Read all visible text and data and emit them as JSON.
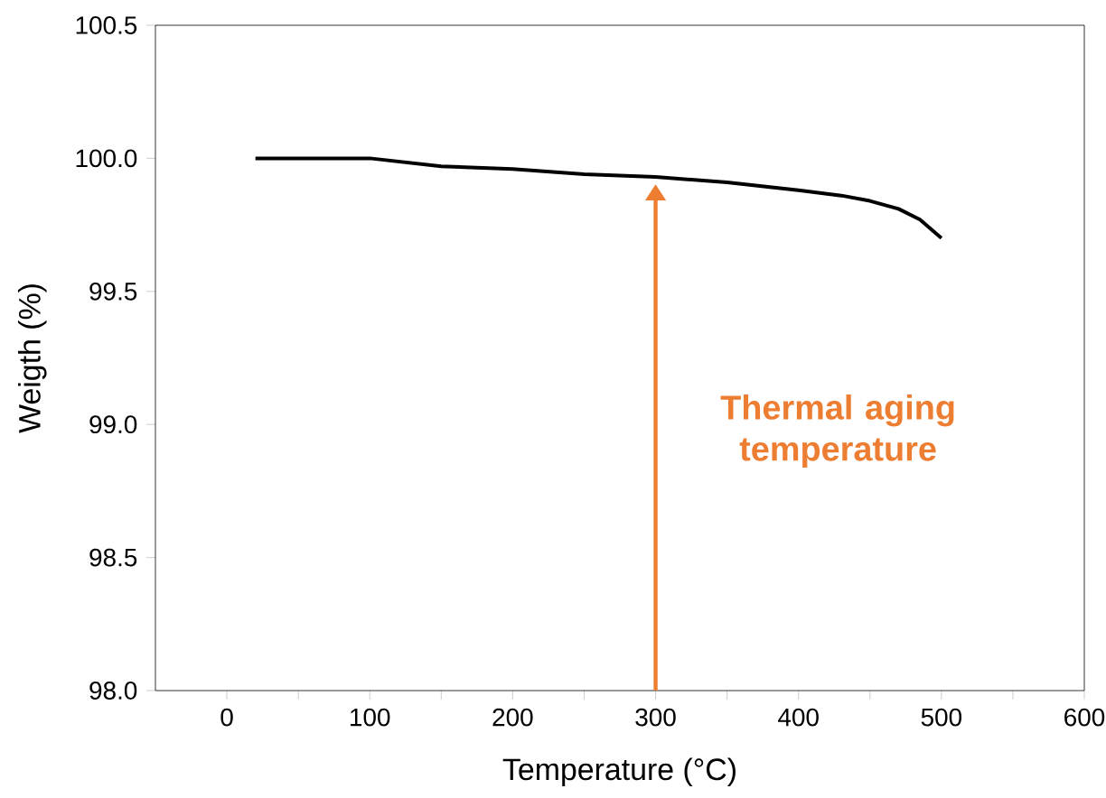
{
  "chart_data": {
    "type": "line",
    "xlabel": "Temperature (°C)",
    "ylabel": "Weigth (%)",
    "x": [
      20,
      70,
      100,
      150,
      200,
      250,
      300,
      350,
      400,
      430,
      450,
      470,
      485,
      500
    ],
    "series": [
      {
        "color": "#000000",
        "values": [
          100.0,
          100.0,
          100.0,
          99.97,
          99.96,
          99.94,
          99.93,
          99.91,
          99.88,
          99.86,
          99.84,
          99.81,
          99.77,
          99.7
        ]
      }
    ],
    "xlim": [
      -50,
      600
    ],
    "xticks": [
      0,
      {
        "value": 50,
        "label": null
      },
      100,
      {
        "value": 150,
        "label": null
      },
      200,
      {
        "value": 250,
        "label": null
      },
      300,
      {
        "value": 350,
        "label": null
      },
      400,
      {
        "value": 450,
        "label": null
      },
      500,
      {
        "value": 550,
        "label": null
      },
      600
    ],
    "ylim": [
      98.0,
      100.5
    ],
    "yticks": [
      {
        "value": 98.0,
        "label": "98.0"
      },
      {
        "value": 98.5,
        "label": "98.5"
      },
      {
        "value": 99.0,
        "label": "99.0"
      },
      {
        "value": 99.5,
        "label": "99.5"
      },
      {
        "value": 100.0,
        "label": "100.0"
      },
      {
        "value": 100.5,
        "label": "100.5"
      }
    ],
    "ref_lines": [
      {
        "axis": "x",
        "value": 300,
        "label": "Thermal aging temperature",
        "color": "#ed7d31"
      }
    ],
    "grid": false,
    "legend": false,
    "marker": "none",
    "line_style": "solid"
  }
}
